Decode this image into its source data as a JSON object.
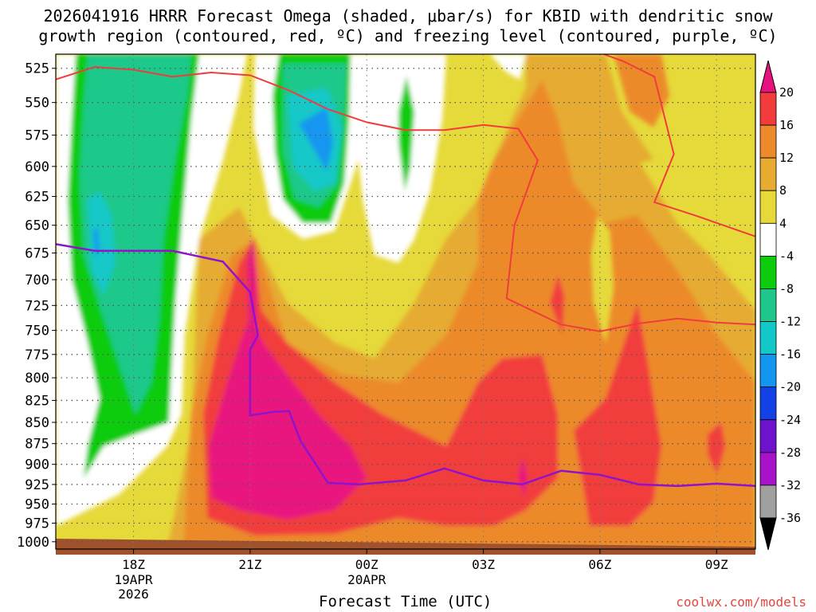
{
  "title_line1": "2026041916 HRRR Forecast Omega (shaded, μbar/s) for KBID with dendritic snow",
  "title_line2": "growth region (contoured, red, ºC) and freezing level (contoured, purple, ºC)",
  "credit": "coolwx.com/models",
  "chart_data": {
    "type": "contour-timeheight",
    "title": "2026041916 HRRR Forecast Omega (shaded, μbar/s) for KBID with dendritic snow growth region (contoured, red, ºC) and freezing level (contoured, purple, ºC)",
    "xlabel": "Forecast Time (UTC)",
    "ylabel": "",
    "x_ticks": [
      {
        "label": "18Z",
        "sub": [
          "19APR",
          "2026"
        ],
        "hour": 18
      },
      {
        "label": "21Z",
        "sub": [],
        "hour": 21
      },
      {
        "label": "00Z",
        "sub": [
          "20APR"
        ],
        "hour": 24
      },
      {
        "label": "03Z",
        "sub": [],
        "hour": 27
      },
      {
        "label": "06Z",
        "sub": [],
        "hour": 30
      },
      {
        "label": "09Z",
        "sub": [],
        "hour": 33
      }
    ],
    "x_range_hours": [
      16,
      34
    ],
    "y_levels": [
      525,
      550,
      575,
      600,
      625,
      650,
      675,
      700,
      725,
      750,
      775,
      800,
      825,
      850,
      875,
      900,
      925,
      950,
      975,
      1000
    ],
    "y_range_hPa": [
      515,
      1010
    ],
    "y_scale": "log",
    "colorbar": {
      "labels": [
        "20",
        "16",
        "12",
        "8",
        "4",
        "-4",
        "-8",
        "-12",
        "-16",
        "-20",
        "-24",
        "-28",
        "-32",
        "-36"
      ],
      "colors": [
        "#e8127e",
        "#f23c3c",
        "#ec8a2c",
        "#e6ab30",
        "#e6d93a",
        "#ffffff",
        "#0dcc0d",
        "#1dc88a",
        "#12c8c8",
        "#1296f0",
        "#1242e6",
        "#6e12cc",
        "#a812c8",
        "#a0a0a0"
      ],
      "top_color": "#e8127e",
      "bottom_color": "#000000"
    },
    "dgz_contour_color": "#f03c3c",
    "freezing_level_color": "#9012cc",
    "freezing_level": [
      {
        "hour": 16.0,
        "p": 667
      },
      {
        "hour": 17.0,
        "p": 673
      },
      {
        "hour": 19.0,
        "p": 673
      },
      {
        "hour": 20.3,
        "p": 683
      },
      {
        "hour": 21.0,
        "p": 712
      },
      {
        "hour": 21.2,
        "p": 755
      },
      {
        "hour": 21.0,
        "p": 770
      },
      {
        "hour": 21.0,
        "p": 842
      },
      {
        "hour": 21.6,
        "p": 838
      },
      {
        "hour": 22.0,
        "p": 837
      },
      {
        "hour": 22.3,
        "p": 872
      },
      {
        "hour": 23.0,
        "p": 923
      },
      {
        "hour": 23.8,
        "p": 925
      },
      {
        "hour": 25.0,
        "p": 920
      },
      {
        "hour": 26.0,
        "p": 905
      },
      {
        "hour": 27.0,
        "p": 920
      },
      {
        "hour": 28.0,
        "p": 925
      },
      {
        "hour": 29.0,
        "p": 908
      },
      {
        "hour": 30.0,
        "p": 913
      },
      {
        "hour": 31.0,
        "p": 925
      },
      {
        "hour": 32.0,
        "p": 927
      },
      {
        "hour": 33.0,
        "p": 924
      },
      {
        "hour": 34.0,
        "p": 927
      }
    ],
    "dgz_top_contour": [
      {
        "hour": 16.0,
        "p": 533
      },
      {
        "hour": 17.0,
        "p": 524
      },
      {
        "hour": 18.0,
        "p": 526
      },
      {
        "hour": 19.0,
        "p": 531
      },
      {
        "hour": 20.0,
        "p": 528
      },
      {
        "hour": 21.0,
        "p": 530
      },
      {
        "hour": 22.0,
        "p": 541
      },
      {
        "hour": 23.0,
        "p": 555
      },
      {
        "hour": 24.0,
        "p": 565
      },
      {
        "hour": 25.0,
        "p": 571
      },
      {
        "hour": 26.0,
        "p": 571
      },
      {
        "hour": 27.0,
        "p": 567
      },
      {
        "hour": 27.9,
        "p": 570
      },
      {
        "hour": 28.4,
        "p": 595
      },
      {
        "hour": 27.8,
        "p": 650
      },
      {
        "hour": 27.6,
        "p": 718
      },
      {
        "hour": 29.0,
        "p": 744
      },
      {
        "hour": 30.0,
        "p": 751
      },
      {
        "hour": 31.0,
        "p": 743
      },
      {
        "hour": 32.0,
        "p": 738
      },
      {
        "hour": 33.0,
        "p": 742
      },
      {
        "hour": 34.0,
        "p": 744
      }
    ],
    "dgz_right_contour": [
      {
        "hour": 29.8,
        "p": 512
      },
      {
        "hour": 30.6,
        "p": 520
      },
      {
        "hour": 31.4,
        "p": 531
      },
      {
        "hour": 31.9,
        "p": 590
      },
      {
        "hour": 31.4,
        "p": 630
      },
      {
        "hour": 32.5,
        "p": 642
      },
      {
        "hour": 34.0,
        "p": 660
      }
    ]
  }
}
